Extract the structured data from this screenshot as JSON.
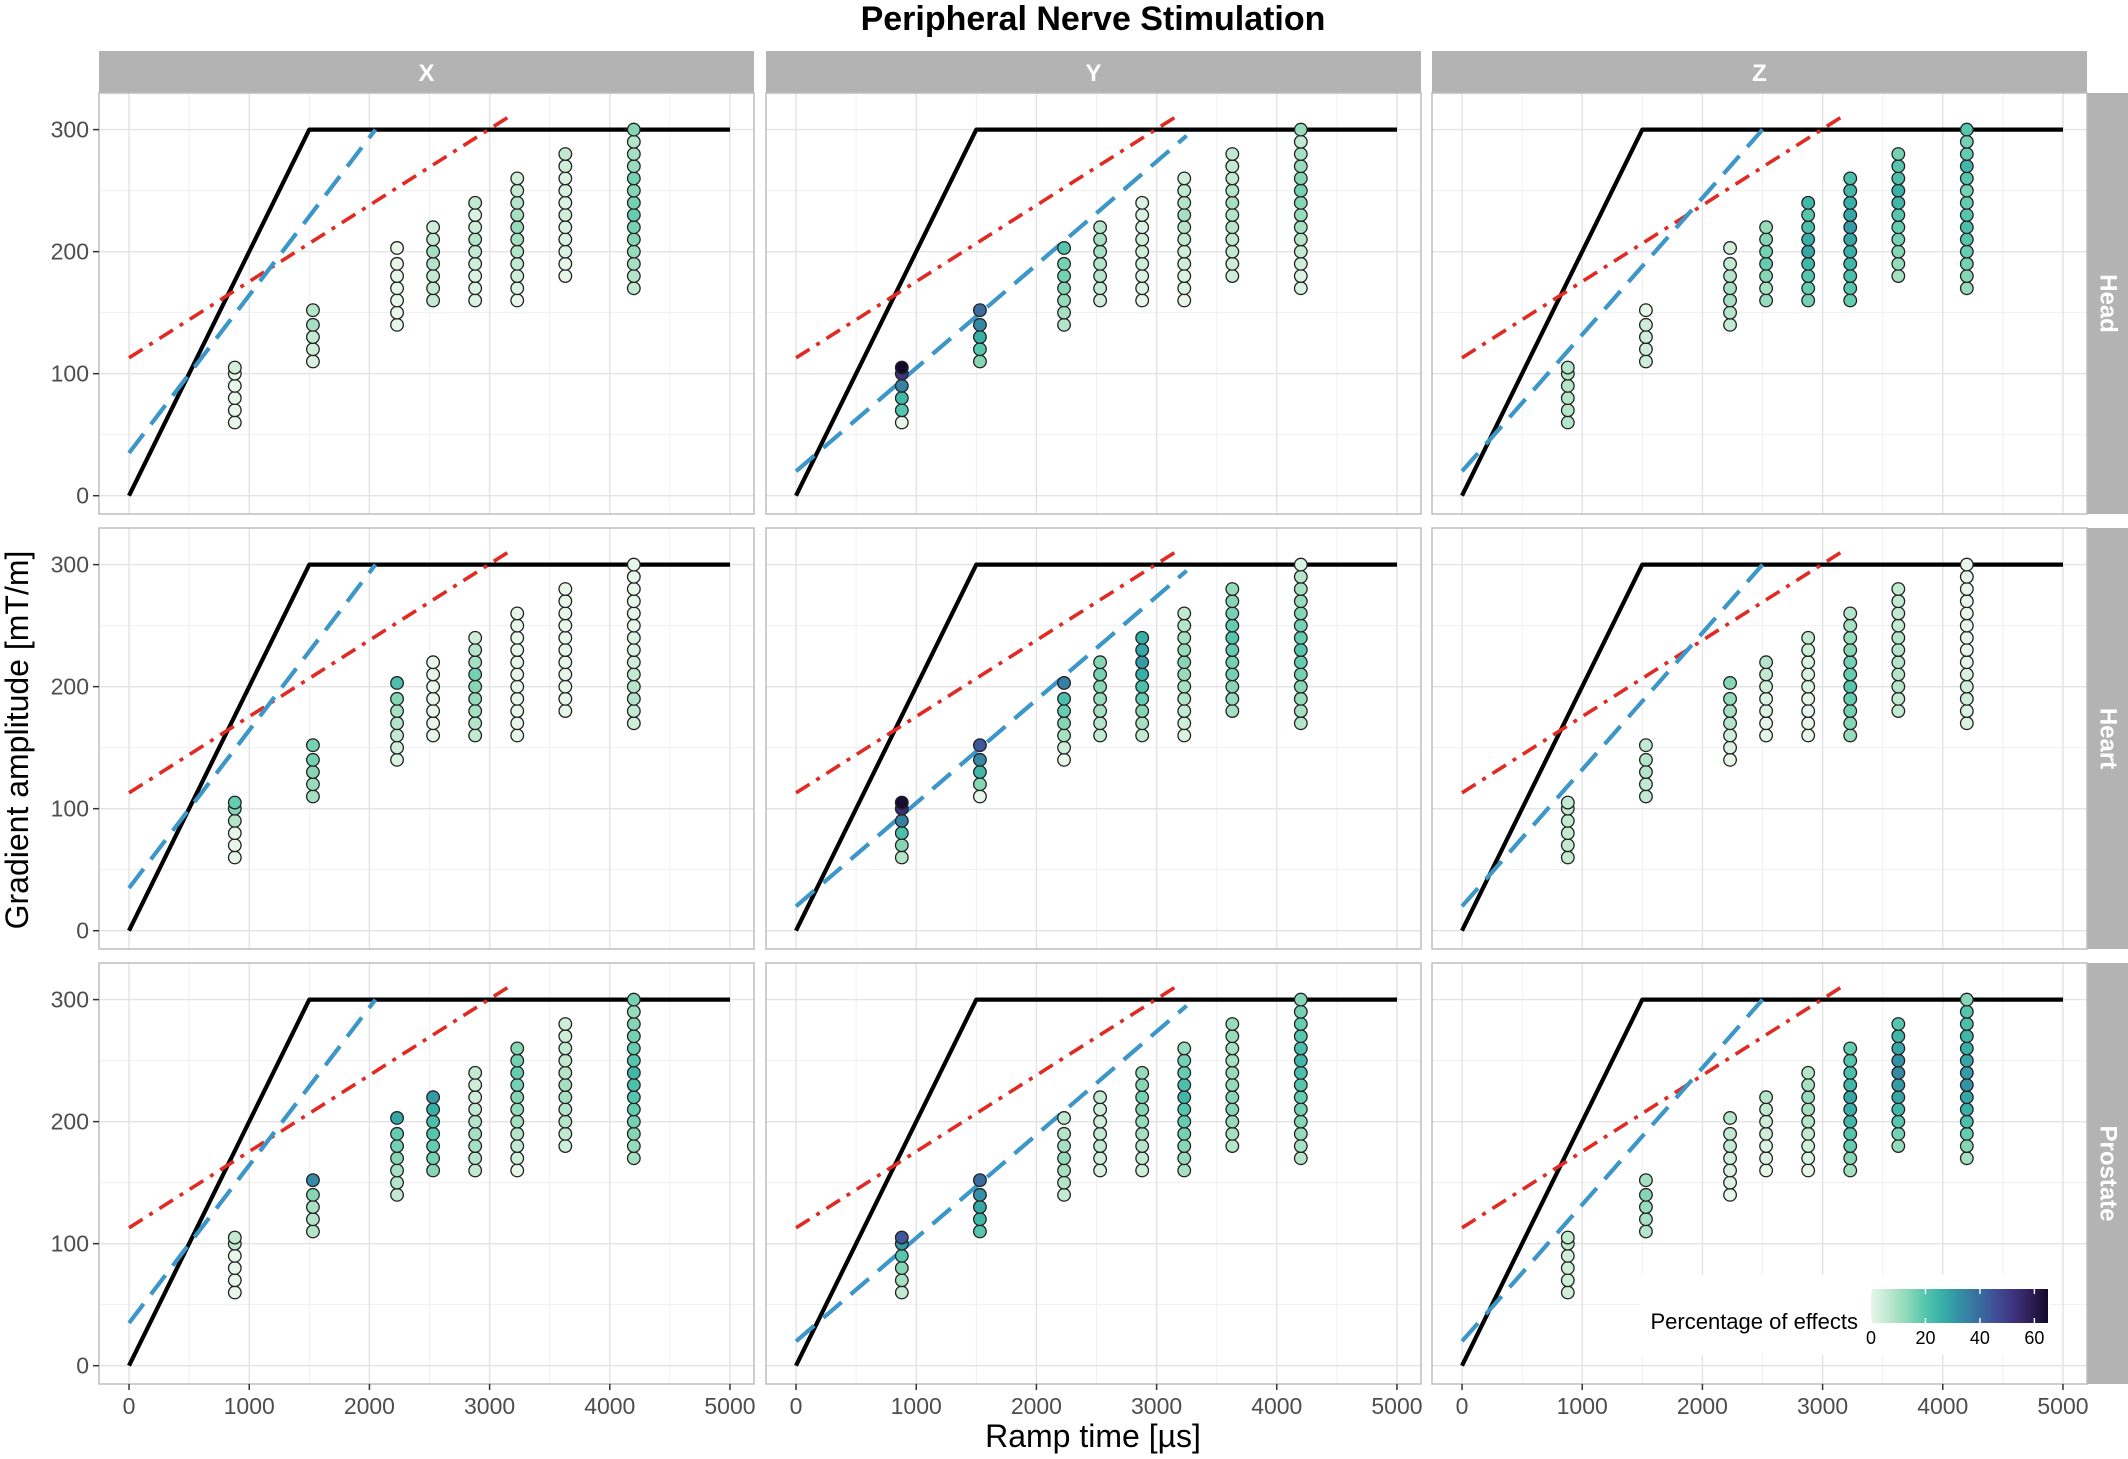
{
  "chart_data": {
    "type": "scatter",
    "title": "Peripheral Nerve Stimulation",
    "xlabel": "Ramp time [µs]",
    "ylabel": "Gradient amplitude [mT/m]",
    "xlim": [
      -250,
      5200
    ],
    "ylim": [
      -15,
      330
    ],
    "x_ticks": [
      0,
      1000,
      2000,
      3000,
      4000,
      5000
    ],
    "y_ticks": [
      0,
      100,
      200,
      300
    ],
    "grid": true,
    "col_facets": [
      "X",
      "Y",
      "Z"
    ],
    "row_facets": [
      "Head",
      "Heart",
      "Prostate"
    ],
    "legend": {
      "title": "Percentage of effects",
      "placement": "bottom-right",
      "range": [
        0,
        65
      ],
      "ticks": [
        0,
        20,
        40,
        60
      ],
      "colors": [
        "#e6f7e9",
        "#bfe8cf",
        "#8fd9b8",
        "#57c8ad",
        "#37b0a8",
        "#3490a6",
        "#3970a0",
        "#3f5098",
        "#3d3580",
        "#2d1f57",
        "#14092a"
      ]
    },
    "reference_lines": {
      "black_solid": {
        "style": "solid",
        "color": "#000000",
        "points": [
          [
            0,
            0
          ],
          [
            1500,
            300
          ],
          [
            5000,
            300
          ]
        ]
      },
      "blue_dashed": {
        "style": "dashed",
        "color": "#3c96c8",
        "X": {
          "x": [
            0,
            2050
          ],
          "y": [
            35,
            300
          ]
        },
        "Y": {
          "x": [
            0,
            3250
          ],
          "y": [
            20,
            295
          ]
        },
        "Z": {
          "x": [
            0,
            2500
          ],
          "y": [
            20,
            300
          ]
        }
      },
      "red_dashdot": {
        "style": "dashdot",
        "color": "#e02a22",
        "x": [
          0,
          3200
        ],
        "y": [
          113,
          313
        ]
      }
    },
    "measurement_groups": [
      {
        "ramp_time": 880,
        "amplitudes": [
          60,
          70,
          80,
          90,
          100,
          105
        ]
      },
      {
        "ramp_time": 1530,
        "amplitudes": [
          110,
          120,
          130,
          140,
          152
        ]
      },
      {
        "ramp_time": 2230,
        "amplitudes": [
          140,
          150,
          160,
          170,
          180,
          190,
          203
        ]
      },
      {
        "ramp_time": 2530,
        "amplitudes": [
          160,
          170,
          180,
          190,
          200,
          210,
          220
        ]
      },
      {
        "ramp_time": 2880,
        "amplitudes": [
          160,
          170,
          180,
          190,
          200,
          210,
          220,
          230,
          240
        ]
      },
      {
        "ramp_time": 3230,
        "amplitudes": [
          160,
          170,
          180,
          190,
          200,
          210,
          220,
          230,
          240,
          250,
          260
        ]
      },
      {
        "ramp_time": 3630,
        "amplitudes": [
          180,
          190,
          200,
          210,
          220,
          230,
          240,
          250,
          260,
          270,
          280
        ]
      },
      {
        "ramp_time": 4200,
        "amplitudes": [
          170,
          180,
          190,
          200,
          210,
          220,
          230,
          240,
          250,
          260,
          270,
          280,
          290,
          300
        ]
      }
    ],
    "panel_effect_percentages": {
      "Head": {
        "X": [
          [
            0,
            0,
            0,
            0,
            0,
            3
          ],
          [
            2,
            4,
            6,
            10,
            8
          ],
          [
            0,
            0,
            0,
            0,
            0,
            0,
            0
          ],
          [
            6,
            6,
            6,
            8,
            10,
            6,
            4
          ],
          [
            2,
            2,
            2,
            4,
            6,
            8,
            4,
            2,
            6
          ],
          [
            0,
            2,
            4,
            6,
            8,
            10,
            12,
            10,
            8,
            6,
            4
          ],
          [
            0,
            0,
            2,
            2,
            2,
            4,
            2,
            2,
            2,
            4,
            6
          ],
          [
            6,
            8,
            10,
            12,
            14,
            16,
            18,
            16,
            14,
            16,
            12,
            10,
            8,
            14
          ]
        ],
        "Y": [
          [
            0,
            20,
            24,
            36,
            52,
            66
          ],
          [
            14,
            20,
            26,
            34,
            40
          ],
          [
            8,
            10,
            12,
            14,
            16,
            16,
            20
          ],
          [
            4,
            6,
            8,
            8,
            10,
            10,
            8
          ],
          [
            0,
            2,
            2,
            4,
            4,
            4,
            2,
            2,
            2
          ],
          [
            0,
            2,
            2,
            4,
            4,
            6,
            8,
            10,
            8,
            6,
            4
          ],
          [
            4,
            4,
            6,
            6,
            8,
            8,
            10,
            8,
            6,
            6,
            6
          ],
          [
            2,
            2,
            4,
            6,
            8,
            10,
            12,
            14,
            16,
            14,
            12,
            10,
            6,
            12
          ]
        ],
        "Z": [
          [
            8,
            8,
            8,
            8,
            8,
            8
          ],
          [
            4,
            4,
            4,
            4,
            0
          ],
          [
            6,
            8,
            10,
            10,
            8,
            6,
            4
          ],
          [
            12,
            10,
            14,
            18,
            16,
            14,
            12
          ],
          [
            16,
            18,
            20,
            24,
            28,
            26,
            22,
            20,
            24
          ],
          [
            18,
            20,
            22,
            24,
            26,
            28,
            30,
            28,
            26,
            24,
            22
          ],
          [
            10,
            12,
            14,
            16,
            18,
            20,
            24,
            26,
            22,
            20,
            16
          ],
          [
            12,
            14,
            16,
            18,
            20,
            22,
            20,
            18,
            16,
            20,
            24,
            18,
            16,
            20
          ]
        ]
      },
      "Heart": {
        "X": [
          [
            0,
            0,
            0,
            8,
            14,
            18
          ],
          [
            10,
            12,
            14,
            16,
            16
          ],
          [
            2,
            4,
            6,
            8,
            10,
            14,
            22
          ],
          [
            0,
            0,
            0,
            0,
            0,
            0,
            0
          ],
          [
            6,
            8,
            10,
            12,
            14,
            16,
            10,
            8,
            4
          ],
          [
            0,
            0,
            0,
            0,
            0,
            0,
            0,
            0,
            0,
            0,
            0
          ],
          [
            0,
            0,
            0,
            0,
            0,
            0,
            0,
            0,
            0,
            0,
            0
          ],
          [
            4,
            6,
            8,
            8,
            6,
            4,
            2,
            2,
            0,
            0,
            0,
            0,
            0,
            0
          ]
        ],
        "Y": [
          [
            8,
            14,
            22,
            36,
            54,
            64
          ],
          [
            0,
            14,
            24,
            34,
            44
          ],
          [
            0,
            4,
            10,
            14,
            18,
            22,
            36
          ],
          [
            6,
            8,
            10,
            12,
            14,
            16,
            14
          ],
          [
            6,
            10,
            14,
            18,
            22,
            26,
            30,
            28,
            26
          ],
          [
            2,
            4,
            6,
            8,
            10,
            12,
            14,
            12,
            10,
            8,
            6
          ],
          [
            10,
            12,
            14,
            16,
            16,
            18,
            20,
            18,
            16,
            14,
            12
          ],
          [
            8,
            10,
            12,
            14,
            16,
            18,
            20,
            18,
            16,
            14,
            12,
            10,
            8,
            2
          ]
        ],
        "Z": [
          [
            6,
            6,
            6,
            6,
            6,
            6
          ],
          [
            6,
            6,
            8,
            8,
            6
          ],
          [
            0,
            2,
            4,
            8,
            10,
            12,
            14
          ],
          [
            0,
            0,
            2,
            2,
            4,
            6,
            8
          ],
          [
            0,
            0,
            0,
            0,
            2,
            2,
            2,
            4,
            6
          ],
          [
            12,
            14,
            16,
            18,
            20,
            18,
            16,
            14,
            12,
            10,
            8
          ],
          [
            6,
            6,
            8,
            8,
            8,
            8,
            8,
            6,
            6,
            6,
            6
          ],
          [
            2,
            2,
            4,
            4,
            2,
            0,
            0,
            0,
            0,
            0,
            0,
            0,
            0,
            0
          ]
        ]
      },
      "Prostate": {
        "X": [
          [
            0,
            0,
            0,
            0,
            6,
            6
          ],
          [
            8,
            8,
            10,
            14,
            34
          ],
          [
            6,
            8,
            10,
            14,
            16,
            18,
            28
          ],
          [
            14,
            16,
            18,
            20,
            22,
            26,
            30
          ],
          [
            6,
            8,
            10,
            10,
            8,
            6,
            4,
            4,
            6
          ],
          [
            0,
            4,
            6,
            8,
            10,
            12,
            14,
            16,
            18,
            16,
            14
          ],
          [
            4,
            6,
            8,
            8,
            10,
            10,
            8,
            6,
            6,
            4,
            4
          ],
          [
            10,
            12,
            14,
            16,
            18,
            20,
            22,
            24,
            20,
            18,
            16,
            14,
            12,
            16
          ]
        ],
        "Y": [
          [
            6,
            10,
            14,
            20,
            30,
            44
          ],
          [
            20,
            24,
            28,
            32,
            40
          ],
          [
            6,
            8,
            10,
            12,
            10,
            8,
            6
          ],
          [
            2,
            4,
            6,
            6,
            4,
            4,
            6
          ],
          [
            4,
            6,
            8,
            10,
            12,
            14,
            16,
            14,
            12
          ],
          [
            10,
            12,
            14,
            16,
            18,
            20,
            24,
            22,
            18,
            16,
            12
          ],
          [
            8,
            10,
            12,
            14,
            14,
            12,
            12,
            10,
            10,
            12,
            12
          ],
          [
            8,
            10,
            12,
            14,
            16,
            18,
            20,
            22,
            24,
            22,
            20,
            18,
            16,
            14
          ]
        ],
        "Z": [
          [
            4,
            4,
            4,
            4,
            6,
            6
          ],
          [
            8,
            10,
            12,
            14,
            10
          ],
          [
            0,
            2,
            2,
            4,
            6,
            6,
            8
          ],
          [
            0,
            2,
            2,
            4,
            4,
            6,
            8
          ],
          [
            0,
            2,
            4,
            6,
            8,
            10,
            12,
            10,
            8
          ],
          [
            10,
            14,
            18,
            20,
            24,
            26,
            28,
            24,
            22,
            20,
            18
          ],
          [
            12,
            16,
            20,
            24,
            28,
            30,
            34,
            32,
            28,
            24,
            20
          ],
          [
            10,
            14,
            18,
            22,
            26,
            28,
            32,
            30,
            28,
            26,
            24,
            22,
            20,
            14
          ]
        ]
      }
    }
  }
}
